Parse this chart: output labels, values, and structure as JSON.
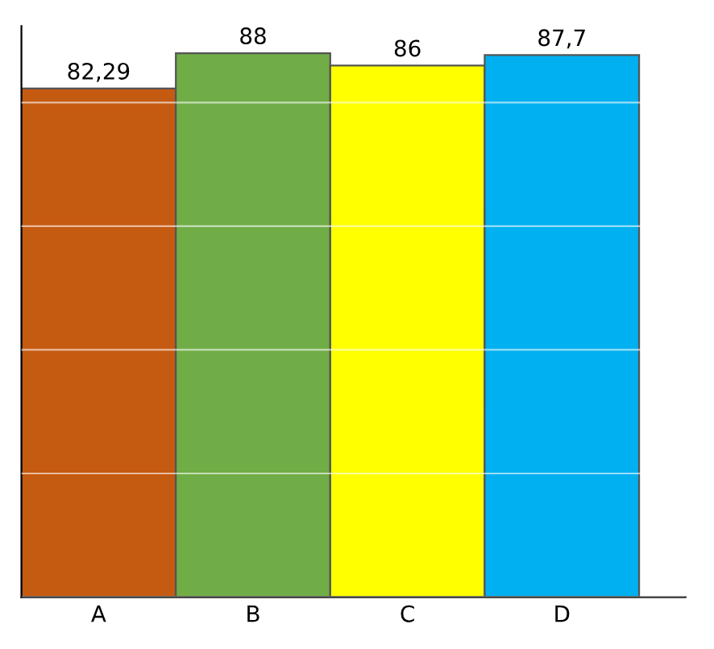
{
  "chart_data": {
    "type": "bar",
    "categories": [
      "A",
      "B",
      "C",
      "D"
    ],
    "values": [
      82.29,
      88,
      86,
      87.7
    ],
    "colors": [
      "#c55a11",
      "#70ad47",
      "#ffff00",
      "#00b0f0"
    ],
    "value_labels": [
      "82,29",
      "88",
      "86",
      "87,7"
    ],
    "grid": "y",
    "tick_labels": "x"
  }
}
